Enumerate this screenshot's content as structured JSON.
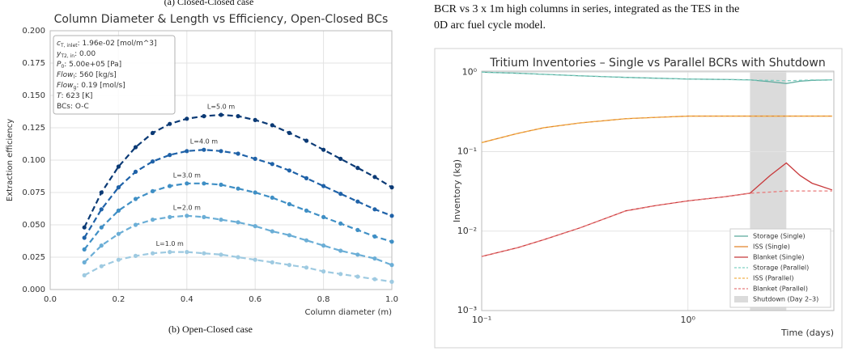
{
  "caption_a": "(a) Closed-Closed case",
  "body_text": [
    "BCR vs 3 x 1m high columns in series, integrated as the TES in the",
    "0D arc fuel cycle model."
  ],
  "caption_b": "(b) Open-Closed case",
  "chart_data": [
    {
      "type": "line",
      "title": "Column Diameter & Length vs Efficiency, Open-Closed BCs",
      "xlabel": "Column diameter (m)",
      "ylabel": "Extraction efficiency",
      "x": [
        0.1,
        0.15,
        0.2,
        0.25,
        0.3,
        0.35,
        0.4,
        0.45,
        0.5,
        0.55,
        0.6,
        0.65,
        0.7,
        0.75,
        0.8,
        0.85,
        0.9,
        0.95,
        1.0
      ],
      "series": [
        {
          "name": "L=1.0 m",
          "color": "#9ecae1",
          "values": [
            0.011,
            0.018,
            0.023,
            0.026,
            0.028,
            0.029,
            0.029,
            0.028,
            0.027,
            0.025,
            0.023,
            0.021,
            0.019,
            0.017,
            0.014,
            0.012,
            0.01,
            0.008,
            0.006
          ]
        },
        {
          "name": "L=2.0 m",
          "color": "#6baed6",
          "values": [
            0.021,
            0.034,
            0.043,
            0.05,
            0.054,
            0.056,
            0.057,
            0.056,
            0.054,
            0.052,
            0.049,
            0.045,
            0.042,
            0.038,
            0.034,
            0.03,
            0.027,
            0.024,
            0.019
          ]
        },
        {
          "name": "L=3.0 m",
          "color": "#3f8fc5",
          "values": [
            0.031,
            0.048,
            0.061,
            0.07,
            0.076,
            0.08,
            0.082,
            0.082,
            0.081,
            0.078,
            0.075,
            0.071,
            0.066,
            0.061,
            0.056,
            0.051,
            0.046,
            0.041,
            0.037
          ]
        },
        {
          "name": "L=4.0 m",
          "color": "#1f62a8",
          "values": [
            0.04,
            0.062,
            0.079,
            0.091,
            0.099,
            0.104,
            0.107,
            0.108,
            0.107,
            0.105,
            0.101,
            0.097,
            0.092,
            0.086,
            0.08,
            0.074,
            0.068,
            0.062,
            0.057
          ]
        },
        {
          "name": "L=5.0 m",
          "color": "#0b3a75",
          "values": [
            0.048,
            0.075,
            0.095,
            0.11,
            0.121,
            0.128,
            0.132,
            0.134,
            0.135,
            0.134,
            0.131,
            0.127,
            0.121,
            0.115,
            0.108,
            0.101,
            0.094,
            0.087,
            0.079
          ]
        }
      ],
      "linestyle": "dashed",
      "markers": true,
      "log": false,
      "grid": true,
      "xlim": [
        0,
        1
      ],
      "ylim": [
        0,
        0.2
      ],
      "xticks": [
        {
          "value": 0,
          "label": "0.0"
        },
        {
          "value": 0.2,
          "label": "0.2"
        },
        {
          "value": 0.4,
          "label": "0.4"
        },
        {
          "value": 0.6,
          "label": "0.6"
        },
        {
          "value": 0.8,
          "label": "0.8"
        },
        {
          "value": 1,
          "label": "1.0"
        }
      ],
      "yticks": [
        {
          "value": 0,
          "label": "0.000"
        },
        {
          "value": 0.025,
          "label": "0.025"
        },
        {
          "value": 0.05,
          "label": "0.050"
        },
        {
          "value": 0.075,
          "label": "0.075"
        },
        {
          "value": 0.1,
          "label": "0.100"
        },
        {
          "value": 0.125,
          "label": "0.125"
        },
        {
          "value": 0.15,
          "label": "0.150"
        },
        {
          "value": 0.175,
          "label": "0.175"
        },
        {
          "value": 0.2,
          "label": "0.200"
        }
      ],
      "info_box": [
        {
          "symbol": "c",
          "sub": "T, inlet",
          "text": ": 1.96e-02 [mol/m^3]"
        },
        {
          "symbol": "y",
          "sub": "T2, in",
          "text": ": 0.00"
        },
        {
          "symbol": "P",
          "sub": "0",
          "text": ": 5.00e+05 [Pa]"
        },
        {
          "symbol": "Flow",
          "sub": "l",
          "text": ": 560 [kg/s]"
        },
        {
          "symbol": "Flow",
          "sub": "g",
          "text": ": 0.19 [mol/s]"
        },
        {
          "symbol": "T",
          "text": ": 623 [K]"
        },
        {
          "text": "BCs: O-C"
        }
      ]
    },
    {
      "type": "line",
      "title": "Tritium Inventories – Single vs Parallel BCRs with Shutdown",
      "xlabel": "Time (days)",
      "ylabel": "Inventory (kg)",
      "x": [
        0.1,
        0.15,
        0.2,
        0.3,
        0.5,
        0.7,
        1,
        1.5,
        2,
        2.5,
        3,
        3.5,
        4,
        5
      ],
      "series": [
        {
          "name": "Storage (Single)",
          "color": "#5aa99c",
          "linestyle": "solid",
          "values": [
            1.0,
            0.97,
            0.94,
            0.9,
            0.86,
            0.84,
            0.82,
            0.81,
            0.8,
            0.76,
            0.72,
            0.77,
            0.79,
            0.8
          ]
        },
        {
          "name": "ISS (Single)",
          "color": "#e2842a",
          "linestyle": "solid",
          "values": [
            0.13,
            0.17,
            0.2,
            0.23,
            0.26,
            0.27,
            0.28,
            0.28,
            0.28,
            0.28,
            0.28,
            0.28,
            0.28,
            0.28
          ]
        },
        {
          "name": "Blanket (Single)",
          "color": "#c8393b",
          "linestyle": "solid",
          "values": [
            0.0048,
            0.0062,
            0.0078,
            0.011,
            0.018,
            0.021,
            0.024,
            0.027,
            0.03,
            0.05,
            0.072,
            0.05,
            0.04,
            0.033
          ]
        },
        {
          "name": "Storage (Parallel)",
          "color": "#7fd0c2",
          "linestyle": "dashed",
          "values": [
            1.0,
            0.97,
            0.94,
            0.9,
            0.86,
            0.84,
            0.82,
            0.81,
            0.8,
            0.79,
            0.78,
            0.79,
            0.8,
            0.8
          ]
        },
        {
          "name": "ISS (Parallel)",
          "color": "#f2b24c",
          "linestyle": "dashed",
          "values": [
            0.13,
            0.17,
            0.2,
            0.23,
            0.26,
            0.27,
            0.28,
            0.28,
            0.28,
            0.28,
            0.28,
            0.28,
            0.28,
            0.28
          ]
        },
        {
          "name": "Blanket (Parallel)",
          "color": "#e87a7a",
          "linestyle": "dashed",
          "values": [
            0.0048,
            0.0062,
            0.0078,
            0.011,
            0.018,
            0.021,
            0.024,
            0.027,
            0.03,
            0.031,
            0.032,
            0.032,
            0.032,
            0.032
          ]
        }
      ],
      "shaded_region": {
        "label": "Shutdown (Day 2–3)",
        "range": [
          2,
          3
        ],
        "color": "#bdbdbd"
      },
      "markers": false,
      "log": true,
      "grid": true,
      "legend": "lower right",
      "xlim": [
        0.1,
        5.1
      ],
      "ylim": [
        0.001,
        1.03
      ],
      "xticks": [
        {
          "value": 0.1,
          "label": "10⁻¹"
        },
        {
          "value": 1,
          "label": "10⁰"
        }
      ],
      "yticks": [
        {
          "value": 0.001,
          "label": "10⁻³"
        },
        {
          "value": 0.01,
          "label": "10⁻²"
        },
        {
          "value": 0.1,
          "label": "10⁻¹"
        },
        {
          "value": 1,
          "label": "10⁰"
        }
      ]
    }
  ]
}
